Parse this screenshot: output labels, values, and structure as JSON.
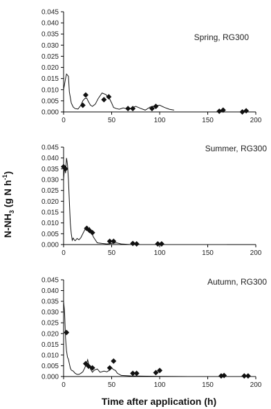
{
  "ylabel": {
    "main": "N-NH",
    "sub": "3",
    "paren": " (g N h",
    "sup": "-1",
    "close": ")"
  },
  "chart_data": [
    {
      "type": "line",
      "title": "Spring, RG300",
      "xlim": [
        0,
        200
      ],
      "ylim": [
        0,
        0.045
      ],
      "x_ticks": [
        "0",
        "50",
        "100",
        "150",
        "200"
      ],
      "y_ticks": [
        "0.000",
        "0.005",
        "0.010",
        "0.015",
        "0.020",
        "0.025",
        "0.030",
        "0.035",
        "0.040",
        "0.045"
      ],
      "series": [
        {
          "kind": "line",
          "x": [
            0,
            2,
            3,
            5,
            6,
            8,
            10,
            12,
            15,
            18,
            20,
            22,
            24,
            26,
            28,
            30,
            33,
            36,
            40,
            44,
            48,
            50,
            52,
            55,
            58,
            62,
            65,
            68,
            70,
            75,
            80,
            85,
            90,
            95,
            100,
            105,
            110,
            115
          ],
          "y": [
            0.01,
            0.015,
            0.017,
            0.016,
            0.009,
            0.004,
            0.0022,
            0.0015,
            0.0013,
            0.003,
            0.005,
            0.006,
            0.0062,
            0.0045,
            0.003,
            0.0025,
            0.0035,
            0.006,
            0.0085,
            0.0078,
            0.0058,
            0.004,
            0.002,
            0.0015,
            0.0012,
            0.0018,
            0.0015,
            0.0012,
            0.0015,
            0.0025,
            0.0016,
            0.0008,
            0.0022,
            0.0028,
            0.003,
            0.002,
            0.0012,
            0.0008
          ]
        },
        {
          "kind": "points",
          "x": [
            20,
            23,
            42,
            47,
            67,
            72,
            92,
            96,
            162,
            166,
            186,
            190
          ],
          "y": [
            0.003,
            0.0076,
            0.0055,
            0.0068,
            0.0015,
            0.0015,
            0.0015,
            0.0025,
            0.0003,
            0.0008,
            0.0,
            0.0005
          ]
        }
      ]
    },
    {
      "type": "line",
      "title": "Summer, RG300",
      "xlim": [
        0,
        200
      ],
      "ylim": [
        0,
        0.045
      ],
      "x_ticks": [
        "0",
        "50",
        "100",
        "150",
        "200"
      ],
      "y_ticks": [
        "0.000",
        "0.005",
        "0.010",
        "0.015",
        "0.020",
        "0.025",
        "0.030",
        "0.035",
        "0.040",
        "0.045"
      ],
      "series": [
        {
          "kind": "line",
          "x": [
            0,
            1,
            2,
            3,
            4,
            5,
            6,
            7,
            8,
            9,
            10,
            11,
            12,
            14,
            16,
            18,
            20,
            22,
            24,
            25,
            26,
            27,
            29,
            31,
            35,
            40,
            45,
            50,
            55,
            60,
            70,
            80,
            90,
            100,
            120,
            140,
            160,
            170
          ],
          "y": [
            0.03,
            0.036,
            0.033,
            0.04,
            0.037,
            0.03,
            0.02,
            0.01,
            0.005,
            0.002,
            0.003,
            0.0022,
            0.0018,
            0.0028,
            0.0022,
            0.0032,
            0.005,
            0.0068,
            0.0075,
            0.0082,
            0.0065,
            0.0078,
            0.0058,
            0.0035,
            0.0008,
            0.0005,
            0.0003,
            0.0005,
            0.0008,
            0.0003,
            0.0,
            0.0,
            0.0,
            0.0,
            0.0,
            0.0,
            0.0,
            0.0
          ]
        },
        {
          "kind": "points",
          "x": [
            0,
            2,
            24,
            27,
            30,
            48,
            52,
            72,
            76,
            98,
            102
          ],
          "y": [
            0.036,
            0.035,
            0.0075,
            0.0065,
            0.0055,
            0.0015,
            0.0015,
            0.0005,
            0.0003,
            0.0003,
            0.0003
          ]
        }
      ]
    },
    {
      "type": "line",
      "title": "Autumn, RG300",
      "xlim": [
        0,
        200
      ],
      "ylim": [
        0,
        0.045
      ],
      "x_ticks": [
        "0",
        "50",
        "100",
        "150",
        "200"
      ],
      "y_ticks": [
        "0.000",
        "0.005",
        "0.010",
        "0.015",
        "0.020",
        "0.025",
        "0.030",
        "0.035",
        "0.040",
        "0.045"
      ],
      "series": [
        {
          "kind": "line",
          "x": [
            0,
            1,
            2,
            3,
            4,
            5,
            6,
            7,
            8,
            10,
            12,
            14,
            16,
            18,
            20,
            22,
            24,
            25,
            26,
            28,
            30,
            32,
            35,
            38,
            42,
            45,
            48,
            50,
            52,
            54,
            56,
            60,
            70,
            80,
            100,
            130,
            160,
            200
          ],
          "y": [
            0.035,
            0.03,
            0.018,
            0.012,
            0.009,
            0.008,
            0.006,
            0.004,
            0.003,
            0.0025,
            0.0015,
            0.001,
            0.001,
            0.0015,
            0.0022,
            0.004,
            0.0063,
            0.0078,
            0.006,
            0.0035,
            0.002,
            0.003,
            0.0035,
            0.002,
            0.0025,
            0.0022,
            0.003,
            0.004,
            0.0032,
            0.0028,
            0.0015,
            0.0005,
            0.0003,
            0.0002,
            0.0001,
            0.0,
            0.0,
            0.0
          ]
        },
        {
          "kind": "points",
          "x": [
            3,
            23,
            26,
            30,
            48,
            52,
            72,
            76,
            96,
            100,
            164,
            167,
            188,
            192
          ],
          "y": [
            0.0205,
            0.006,
            0.0048,
            0.004,
            0.004,
            0.0072,
            0.0015,
            0.0015,
            0.0018,
            0.0028,
            0.0003,
            0.0005,
            0.0003,
            0.0003
          ]
        }
      ]
    }
  ],
  "xlabel": "Time after application (h)"
}
